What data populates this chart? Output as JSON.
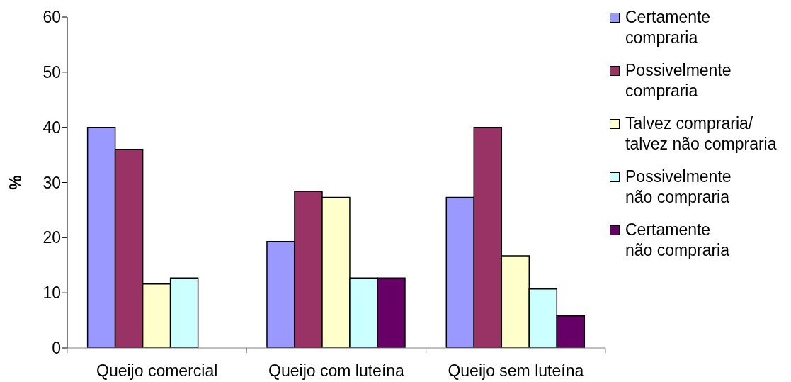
{
  "chart_data": {
    "type": "bar",
    "ylabel": "%",
    "categories": [
      "Queijo comercial",
      "Queijo com luteína",
      "Queijo sem luteína"
    ],
    "series": [
      {
        "name": "Certamente\ncompraria",
        "color": "#9999ff",
        "values": [
          40,
          19.3,
          27.3
        ]
      },
      {
        "name": "Possivelmente\ncompraria",
        "color": "#993366",
        "values": [
          36,
          28.4,
          40
        ]
      },
      {
        "name": "Talvez compraria/\ntalvez não compraria",
        "color": "#ffffcc",
        "values": [
          11.6,
          27.3,
          16.7
        ]
      },
      {
        "name": "Possivelmente\nnão compraria",
        "color": "#ccffff",
        "values": [
          12.7,
          12.7,
          10.7
        ]
      },
      {
        "name": "Certamente\nnão compraria",
        "color": "#660066",
        "values": [
          0,
          12.7,
          5.8
        ]
      }
    ],
    "ylim": [
      0,
      60
    ],
    "yticks": [
      0,
      10,
      20,
      30,
      40,
      50,
      60
    ],
    "legend": "top right"
  }
}
